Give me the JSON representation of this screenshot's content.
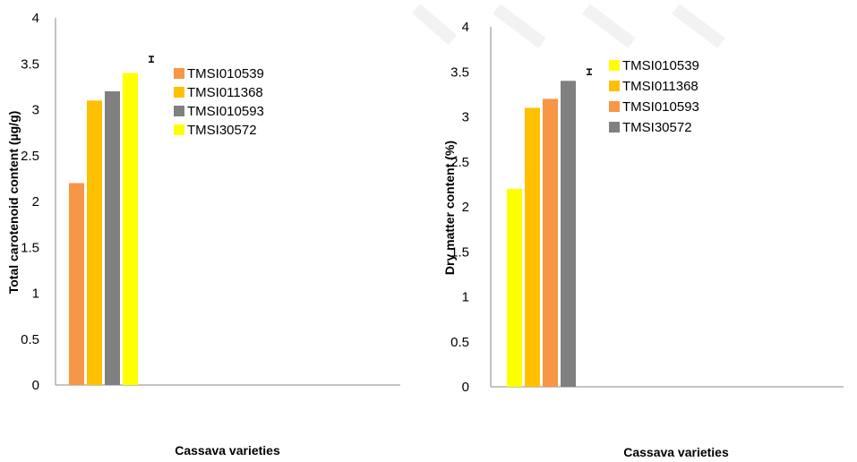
{
  "chart_data": [
    {
      "type": "bar",
      "title": "",
      "xlabel": "Cassava varieties",
      "ylabel": "Total carotenoid content (µg/g)",
      "ylim": [
        0,
        4
      ],
      "yticks": [
        "0",
        "0.5",
        "1",
        "1.5",
        "2",
        "2.5",
        "3",
        "3.5",
        "4"
      ],
      "series": [
        {
          "name": "TMSI010539",
          "values": [
            2.2
          ],
          "color": "#F79646"
        },
        {
          "name": "TMSI011368",
          "values": [
            3.1
          ],
          "color": "#FFC000"
        },
        {
          "name": "TMSI010593",
          "values": [
            3.2
          ],
          "color": "#808080"
        },
        {
          "name": "TMSI30572",
          "values": [
            3.4
          ],
          "color": "#FFFF00"
        }
      ],
      "error_bar": {
        "value": 3.55,
        "half_width": 0.03
      },
      "legend_position": "right",
      "grid": false
    },
    {
      "type": "bar",
      "title": "",
      "xlabel": "Cassava varieties",
      "ylabel": "Dry matter content (%)",
      "ylim": [
        0,
        4
      ],
      "yticks": [
        "0",
        "0.5",
        "1",
        "1.5",
        "2",
        "2.5",
        "3",
        "3.5",
        "4"
      ],
      "series": [
        {
          "name": "TMSI010539",
          "values": [
            2.2
          ],
          "color": "#FFFF00"
        },
        {
          "name": "TMSI011368",
          "values": [
            3.1
          ],
          "color": "#FFC000"
        },
        {
          "name": "TMSI010593",
          "values": [
            3.2
          ],
          "color": "#F79646"
        },
        {
          "name": "TMSI30572",
          "values": [
            3.4
          ],
          "color": "#808080"
        }
      ],
      "error_bar": {
        "value": 3.5,
        "half_width": 0.03
      },
      "legend_position": "right",
      "grid": false
    }
  ]
}
